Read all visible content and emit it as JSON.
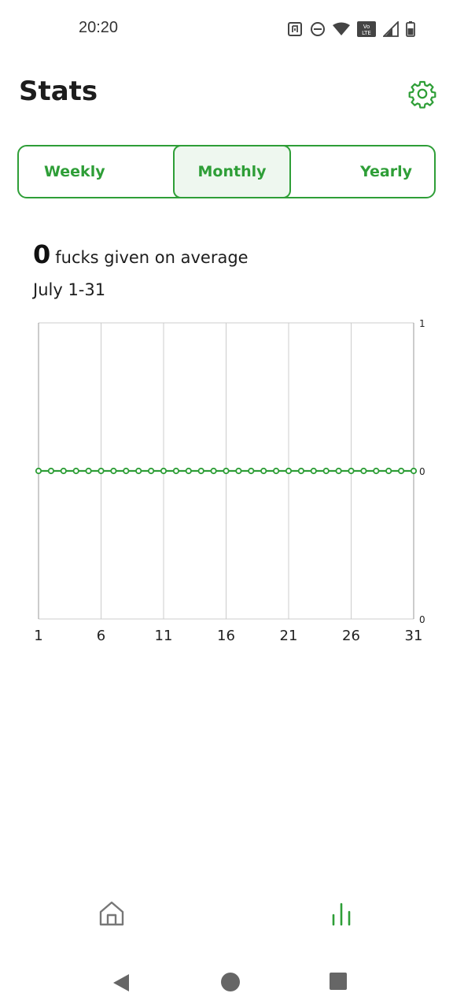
{
  "status_bar": {
    "time": "20:20",
    "icons": [
      "nfc-icon",
      "dnd-icon",
      "wifi-icon",
      "volte-icon",
      "signal-icon",
      "battery-icon"
    ],
    "volte_label": "Vo LTE"
  },
  "header": {
    "title": "Stats",
    "settings_icon": "gear-icon"
  },
  "tabs": [
    {
      "label": "Weekly",
      "selected": false
    },
    {
      "label": "Monthly",
      "selected": true
    },
    {
      "label": "Yearly",
      "selected": false
    }
  ],
  "summary": {
    "average_value": "0",
    "average_label": "fucks given on average",
    "date_range": "July 1-31"
  },
  "colors": {
    "accent": "#2e9e37",
    "selected_tab_bg": "#eef7ef",
    "grid": "#cccccc",
    "text": "#1d1d1d"
  },
  "chart_data": {
    "type": "line",
    "x": [
      1,
      2,
      3,
      4,
      5,
      6,
      7,
      8,
      9,
      10,
      11,
      12,
      13,
      14,
      15,
      16,
      17,
      18,
      19,
      20,
      21,
      22,
      23,
      24,
      25,
      26,
      27,
      28,
      29,
      30,
      31
    ],
    "series": [
      {
        "values": [
          0,
          0,
          0,
          0,
          0,
          0,
          0,
          0,
          0,
          0,
          0,
          0,
          0,
          0,
          0,
          0,
          0,
          0,
          0,
          0,
          0,
          0,
          0,
          0,
          0,
          0,
          0,
          0,
          0,
          0,
          0
        ]
      }
    ],
    "x_tick_labels": [
      "1",
      "6",
      "11",
      "16",
      "21",
      "26",
      "31"
    ],
    "y_axis_labels": [
      "1",
      "0",
      "0"
    ],
    "ylim": [
      -1,
      1
    ],
    "grid": true
  },
  "bottom_nav": {
    "items": [
      {
        "icon": "home-icon",
        "active": false
      },
      {
        "icon": "bar-chart-icon",
        "active": true
      }
    ]
  },
  "system_nav": {
    "items": [
      "back-icon",
      "home-circle-icon",
      "recents-icon"
    ]
  }
}
